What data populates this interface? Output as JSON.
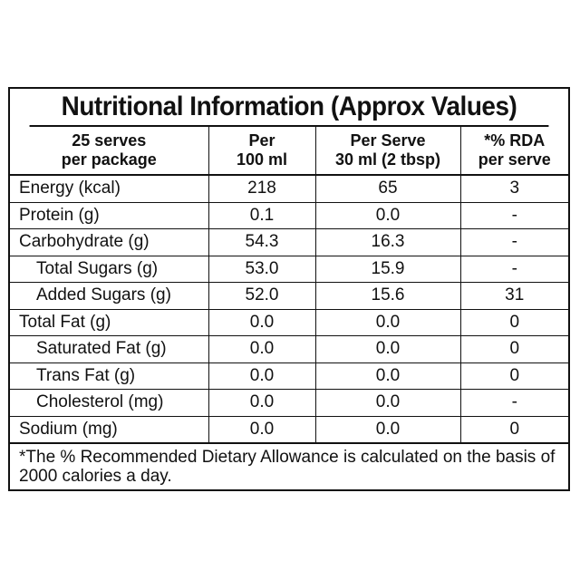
{
  "title": "Nutritional Information (Approx Values)",
  "headers": [
    [
      "25 serves",
      "per package"
    ],
    [
      "Per",
      "100 ml"
    ],
    [
      "Per Serve",
      "30 ml (2 tbsp)"
    ],
    [
      "*% RDA",
      "per serve"
    ]
  ],
  "rows": [
    {
      "name": "Energy (kcal)",
      "indent": false,
      "per100": "218",
      "perServe": "65",
      "rda": "3"
    },
    {
      "name": "Protein (g)",
      "indent": false,
      "per100": "0.1",
      "perServe": "0.0",
      "rda": "-"
    },
    {
      "name": "Carbohydrate (g)",
      "indent": false,
      "per100": "54.3",
      "perServe": "16.3",
      "rda": "-"
    },
    {
      "name": "Total Sugars (g)",
      "indent": true,
      "per100": "53.0",
      "perServe": "15.9",
      "rda": "-"
    },
    {
      "name": "Added Sugars (g)",
      "indent": true,
      "per100": "52.0",
      "perServe": "15.6",
      "rda": "31"
    },
    {
      "name": "Total Fat (g)",
      "indent": false,
      "per100": "0.0",
      "perServe": "0.0",
      "rda": "0"
    },
    {
      "name": "Saturated Fat (g)",
      "indent": true,
      "per100": "0.0",
      "perServe": "0.0",
      "rda": "0"
    },
    {
      "name": "Trans Fat (g)",
      "indent": true,
      "per100": "0.0",
      "perServe": "0.0",
      "rda": "0"
    },
    {
      "name": "Cholesterol (mg)",
      "indent": true,
      "per100": "0.0",
      "perServe": "0.0",
      "rda": "-"
    },
    {
      "name": "Sodium (mg)",
      "indent": false,
      "per100": "0.0",
      "perServe": "0.0",
      "rda": "0"
    }
  ],
  "footnote": "*The % Recommended Dietary Allowance is calculated on the basis of 2000 calories a day."
}
